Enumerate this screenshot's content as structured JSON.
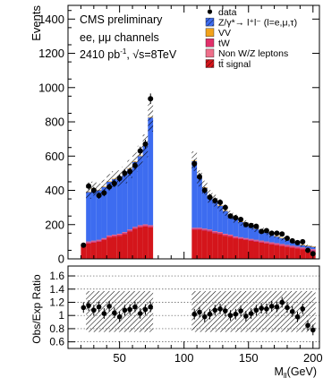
{
  "chart_data": [
    {
      "type": "bar",
      "stacked": true,
      "xlim": [
        10,
        205
      ],
      "ylim": [
        0,
        1480
      ],
      "ylabel": "Events",
      "yticks": [
        0,
        200,
        400,
        600,
        800,
        1000,
        1200,
        1400
      ],
      "yticklabels": [
        "0",
        "200",
        "400",
        "600",
        "800",
        "1000",
        "1200",
        "1400"
      ],
      "annotations": {
        "experiment": "CMS preliminary",
        "channels": "ee, μμ channels",
        "lumi": "2410 pb",
        "lumi_sup": "-1",
        "energy": ", √s=8TeV"
      },
      "legend_position": "top-right",
      "legend": [
        {
          "label": "data",
          "kind": "marker",
          "color": "#000000"
        },
        {
          "label": "Z/γ*→ l⁺l⁻ (l=e,μ,τ)",
          "kind": "box",
          "color": "#3d6cf0"
        },
        {
          "label": "VV",
          "kind": "box",
          "color": "#f2a21b"
        },
        {
          "label": "tW",
          "kind": "box",
          "color": "#e0306a"
        },
        {
          "label": "Non W/Z leptons",
          "kind": "box",
          "color": "#ee6f8a"
        },
        {
          "label": "tt̄ signal",
          "kind": "box",
          "color": "#d4151b"
        }
      ],
      "colors": {
        "dy": "#3d6cf0",
        "signal": "#d4151b",
        "vv": "#f2a21b",
        "tw": "#e0306a",
        "nonw": "#ee6f8a",
        "data": "#000000"
      },
      "bins": [
        {
          "x0": 20,
          "x1": 24,
          "signal": 75,
          "dy": 0
        },
        {
          "x0": 24,
          "x1": 28,
          "signal": 90,
          "dy": 300
        },
        {
          "x0": 28,
          "x1": 32,
          "signal": 95,
          "dy": 315
        },
        {
          "x0": 32,
          "x1": 36,
          "signal": 100,
          "dy": 300
        },
        {
          "x0": 36,
          "x1": 40,
          "signal": 110,
          "dy": 310
        },
        {
          "x0": 40,
          "x1": 44,
          "signal": 125,
          "dy": 325
        },
        {
          "x0": 44,
          "x1": 48,
          "signal": 130,
          "dy": 335
        },
        {
          "x0": 48,
          "x1": 52,
          "signal": 135,
          "dy": 335
        },
        {
          "x0": 52,
          "x1": 56,
          "signal": 145,
          "dy": 345
        },
        {
          "x0": 56,
          "x1": 60,
          "signal": 160,
          "dy": 365
        },
        {
          "x0": 60,
          "x1": 64,
          "signal": 175,
          "dy": 390
        },
        {
          "x0": 64,
          "x1": 68,
          "signal": 185,
          "dy": 415
        },
        {
          "x0": 68,
          "x1": 72,
          "signal": 190,
          "dy": 470
        },
        {
          "x0": 72,
          "x1": 76,
          "signal": 185,
          "dy": 640
        },
        {
          "x0": 106,
          "x1": 110,
          "signal": 170,
          "dy": 400
        },
        {
          "x0": 110,
          "x1": 114,
          "signal": 170,
          "dy": 300
        },
        {
          "x0": 114,
          "x1": 118,
          "signal": 165,
          "dy": 250
        },
        {
          "x0": 118,
          "x1": 122,
          "signal": 160,
          "dy": 205
        },
        {
          "x0": 122,
          "x1": 126,
          "signal": 150,
          "dy": 190
        },
        {
          "x0": 126,
          "x1": 130,
          "signal": 145,
          "dy": 165
        },
        {
          "x0": 130,
          "x1": 134,
          "signal": 135,
          "dy": 145
        },
        {
          "x0": 134,
          "x1": 138,
          "signal": 130,
          "dy": 125
        },
        {
          "x0": 138,
          "x1": 142,
          "signal": 120,
          "dy": 115
        },
        {
          "x0": 142,
          "x1": 146,
          "signal": 115,
          "dy": 100
        },
        {
          "x0": 146,
          "x1": 150,
          "signal": 110,
          "dy": 95
        },
        {
          "x0": 150,
          "x1": 154,
          "signal": 105,
          "dy": 85
        },
        {
          "x0": 154,
          "x1": 158,
          "signal": 100,
          "dy": 75
        },
        {
          "x0": 158,
          "x1": 162,
          "signal": 95,
          "dy": 70
        },
        {
          "x0": 162,
          "x1": 166,
          "signal": 90,
          "dy": 65
        },
        {
          "x0": 166,
          "x1": 170,
          "signal": 85,
          "dy": 55
        },
        {
          "x0": 170,
          "x1": 174,
          "signal": 80,
          "dy": 50
        },
        {
          "x0": 174,
          "x1": 178,
          "signal": 75,
          "dy": 45
        },
        {
          "x0": 178,
          "x1": 182,
          "signal": 70,
          "dy": 40
        },
        {
          "x0": 182,
          "x1": 186,
          "signal": 65,
          "dy": 35
        },
        {
          "x0": 186,
          "x1": 190,
          "signal": 60,
          "dy": 30
        },
        {
          "x0": 190,
          "x1": 194,
          "signal": 55,
          "dy": 25
        },
        {
          "x0": 194,
          "x1": 198,
          "signal": 50,
          "dy": 25
        },
        {
          "x0": 198,
          "x1": 202,
          "signal": 45,
          "dy": 25
        }
      ],
      "data_points": [
        {
          "x": 22,
          "y": 80
        },
        {
          "x": 26,
          "y": 425
        },
        {
          "x": 30,
          "y": 400
        },
        {
          "x": 34,
          "y": 370
        },
        {
          "x": 38,
          "y": 385
        },
        {
          "x": 42,
          "y": 420
        },
        {
          "x": 46,
          "y": 440
        },
        {
          "x": 50,
          "y": 470
        },
        {
          "x": 54,
          "y": 500
        },
        {
          "x": 58,
          "y": 510
        },
        {
          "x": 62,
          "y": 545
        },
        {
          "x": 66,
          "y": 630
        },
        {
          "x": 70,
          "y": 670
        },
        {
          "x": 74,
          "y": 935
        },
        {
          "x": 108,
          "y": 555
        },
        {
          "x": 112,
          "y": 480
        },
        {
          "x": 116,
          "y": 400
        },
        {
          "x": 120,
          "y": 360
        },
        {
          "x": 124,
          "y": 340
        },
        {
          "x": 128,
          "y": 330
        },
        {
          "x": 132,
          "y": 300
        },
        {
          "x": 136,
          "y": 250
        },
        {
          "x": 140,
          "y": 240
        },
        {
          "x": 144,
          "y": 230
        },
        {
          "x": 148,
          "y": 200
        },
        {
          "x": 152,
          "y": 195
        },
        {
          "x": 156,
          "y": 190
        },
        {
          "x": 160,
          "y": 160
        },
        {
          "x": 164,
          "y": 165
        },
        {
          "x": 168,
          "y": 150
        },
        {
          "x": 172,
          "y": 150
        },
        {
          "x": 176,
          "y": 145
        },
        {
          "x": 180,
          "y": 120
        },
        {
          "x": 184,
          "y": 105
        },
        {
          "x": 188,
          "y": 95
        },
        {
          "x": 192,
          "y": 100
        },
        {
          "x": 196,
          "y": 50
        },
        {
          "x": 200,
          "y": 30
        }
      ],
      "uncertainty_fraction": 0.1
    },
    {
      "type": "scatter",
      "xlim": [
        10,
        205
      ],
      "ylim": [
        0.5,
        1.75
      ],
      "xlabel": "M",
      "xlabel_sub": "ll",
      "xlabel_unit": "(GeV)",
      "ylabel": "Obs/Exp Ratio",
      "xticks": [
        50,
        100,
        150,
        200
      ],
      "xticklabels": [
        "50",
        "100",
        "150",
        "200"
      ],
      "yticks": [
        0.6,
        0.8,
        1.0,
        1.2,
        1.4,
        1.6
      ],
      "yticklabels": [
        "0.6",
        "0.8",
        "1",
        "1.2",
        "1.4",
        "1.6"
      ],
      "grid": true,
      "ratio_band": {
        "low": 0.75,
        "high": 1.37
      },
      "points": [
        {
          "x": 22,
          "y": 1.12
        },
        {
          "x": 26,
          "y": 1.15
        },
        {
          "x": 30,
          "y": 1.08
        },
        {
          "x": 34,
          "y": 1.13
        },
        {
          "x": 38,
          "y": 1.03
        },
        {
          "x": 42,
          "y": 1.14
        },
        {
          "x": 46,
          "y": 1.04
        },
        {
          "x": 50,
          "y": 0.98
        },
        {
          "x": 54,
          "y": 1.08
        },
        {
          "x": 58,
          "y": 1.09
        },
        {
          "x": 62,
          "y": 1.13
        },
        {
          "x": 66,
          "y": 1.03
        },
        {
          "x": 70,
          "y": 1.09
        },
        {
          "x": 74,
          "y": 1.13
        },
        {
          "x": 108,
          "y": 1.02
        },
        {
          "x": 112,
          "y": 1.05
        },
        {
          "x": 116,
          "y": 0.98
        },
        {
          "x": 120,
          "y": 1.02
        },
        {
          "x": 124,
          "y": 1.08
        },
        {
          "x": 128,
          "y": 1.1
        },
        {
          "x": 132,
          "y": 1.07
        },
        {
          "x": 136,
          "y": 1.0
        },
        {
          "x": 140,
          "y": 1.02
        },
        {
          "x": 144,
          "y": 1.07
        },
        {
          "x": 148,
          "y": 0.99
        },
        {
          "x": 152,
          "y": 1.03
        },
        {
          "x": 156,
          "y": 1.08
        },
        {
          "x": 160,
          "y": 1.11
        },
        {
          "x": 164,
          "y": 1.1
        },
        {
          "x": 168,
          "y": 1.14
        },
        {
          "x": 172,
          "y": 1.13
        },
        {
          "x": 176,
          "y": 1.2
        },
        {
          "x": 180,
          "y": 1.12
        },
        {
          "x": 184,
          "y": 1.06
        },
        {
          "x": 188,
          "y": 0.98
        },
        {
          "x": 192,
          "y": 1.1
        },
        {
          "x": 196,
          "y": 0.85
        },
        {
          "x": 200,
          "y": 0.78
        }
      ]
    }
  ]
}
